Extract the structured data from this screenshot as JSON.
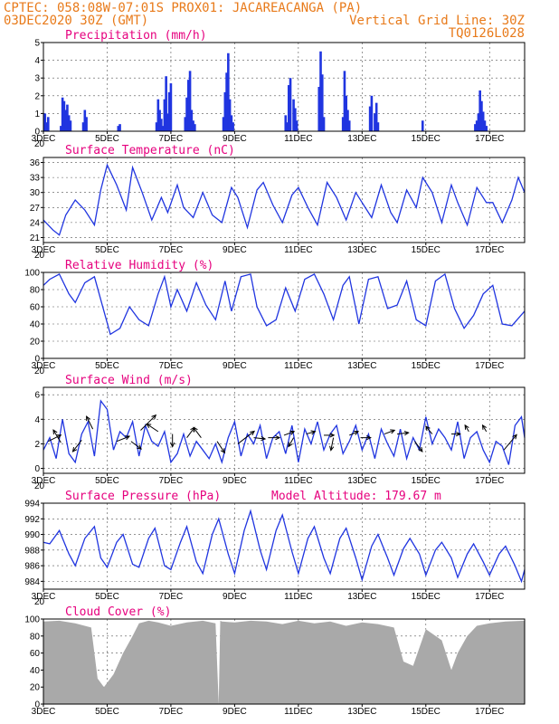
{
  "header": {
    "left_line1": "CPTEC:   058:08W-07:01S   PROX01: JACAREACANGA (PA)",
    "left_line2": "03DEC2020 30Z (GMT)",
    "right_line2": "Vertical Grid Line: 30Z",
    "right_line3": "TQ0126L028"
  },
  "colors": {
    "title": "#e6007e",
    "header": "#e87a1a",
    "series": "#2035e0",
    "cloud": "#a9a9a9",
    "arrow": "#000000"
  },
  "x_axis": {
    "day_labels": [
      "3DEC",
      "5DEC",
      "7DEC",
      "9DEC",
      "11DEC",
      "13DEC",
      "15DEC",
      "17DEC"
    ],
    "day_values": [
      3,
      5,
      7,
      9,
      11,
      13,
      15,
      17
    ],
    "xlim": [
      3,
      18.1
    ],
    "cut_label": "20"
  },
  "chart_data": [
    {
      "id": "precip",
      "type": "bar",
      "title": "Precipitation  (mm/h)",
      "ylim": [
        0,
        5
      ],
      "yticks": [
        0,
        1,
        2,
        3,
        4,
        5
      ],
      "x": [
        3.05,
        3.1,
        3.15,
        3.55,
        3.6,
        3.65,
        3.7,
        3.75,
        3.8,
        3.85,
        4.25,
        4.3,
        4.35,
        5.35,
        5.4,
        6.55,
        6.6,
        6.65,
        6.7,
        6.75,
        6.8,
        6.85,
        6.9,
        6.95,
        7.0,
        7.45,
        7.5,
        7.55,
        7.6,
        7.65,
        7.7,
        7.75,
        8.65,
        8.7,
        8.75,
        8.8,
        8.85,
        8.9,
        8.95,
        10.6,
        10.65,
        10.7,
        10.75,
        10.85,
        10.9,
        10.95,
        11.65,
        11.7,
        11.75,
        11.8,
        12.4,
        12.45,
        12.5,
        12.55,
        12.6,
        13.25,
        13.3,
        13.4,
        13.45,
        13.5,
        14.9,
        16.55,
        16.6,
        16.65,
        16.7,
        16.75,
        16.8,
        16.85,
        16.9
      ],
      "values": [
        1.0,
        0.5,
        0.8,
        0.3,
        1.9,
        1.7,
        1.2,
        1.5,
        0.9,
        0.6,
        0.5,
        1.2,
        0.8,
        0.3,
        0.4,
        0.5,
        1.8,
        1.2,
        0.7,
        0.3,
        1.8,
        3.1,
        1.0,
        2.2,
        2.7,
        0.8,
        1.9,
        2.9,
        3.4,
        1.2,
        0.6,
        0.4,
        0.8,
        2.2,
        3.3,
        4.4,
        1.8,
        0.9,
        0.5,
        0.9,
        0.5,
        2.6,
        3.0,
        1.8,
        1.3,
        0.6,
        2.5,
        4.5,
        3.2,
        0.8,
        0.8,
        3.4,
        2.0,
        1.2,
        0.6,
        1.4,
        2.0,
        1.0,
        1.6,
        0.5,
        0.6,
        0.4,
        0.6,
        1.0,
        2.3,
        1.7,
        1.1,
        0.6,
        0.3
      ]
    },
    {
      "id": "temp",
      "type": "line",
      "title": "Surface Temperature (nC)",
      "ylim": [
        20,
        37
      ],
      "yticks": [
        21,
        24,
        27,
        30,
        33,
        36
      ],
      "x": [
        3.0,
        3.3,
        3.5,
        3.7,
        4.0,
        4.3,
        4.6,
        4.8,
        5.0,
        5.3,
        5.6,
        5.8,
        6.1,
        6.4,
        6.7,
        6.9,
        7.2,
        7.4,
        7.7,
        8.0,
        8.3,
        8.6,
        8.9,
        9.1,
        9.4,
        9.7,
        9.9,
        10.2,
        10.5,
        10.8,
        11.0,
        11.3,
        11.6,
        11.9,
        12.2,
        12.5,
        12.8,
        13.0,
        13.3,
        13.6,
        13.9,
        14.1,
        14.4,
        14.7,
        14.9,
        15.2,
        15.5,
        15.8,
        16.0,
        16.3,
        16.6,
        16.9,
        17.1,
        17.4,
        17.7,
        17.9,
        18.1
      ],
      "values": [
        24.5,
        22.5,
        21.5,
        25.5,
        28.5,
        26.5,
        23.5,
        30.5,
        35.5,
        31.5,
        26.5,
        35.0,
        30.0,
        24.5,
        29.0,
        26.0,
        31.5,
        27.0,
        25.0,
        30.0,
        25.5,
        24.0,
        31.0,
        29.0,
        23.0,
        30.5,
        32.0,
        27.5,
        24.0,
        29.5,
        31.0,
        27.0,
        23.5,
        32.0,
        29.0,
        24.5,
        30.0,
        28.0,
        25.0,
        31.5,
        26.0,
        24.0,
        30.5,
        27.0,
        33.0,
        30.0,
        24.0,
        31.5,
        28.0,
        23.5,
        31.0,
        28.0,
        28.0,
        24.0,
        28.5,
        33.0,
        30.0
      ]
    },
    {
      "id": "rh",
      "type": "line",
      "title": "Relative Humidity (%)",
      "ylim": [
        0,
        100
      ],
      "yticks": [
        0,
        20,
        40,
        60,
        80,
        100
      ],
      "x": [
        3.0,
        3.2,
        3.5,
        3.8,
        4.0,
        4.3,
        4.6,
        4.9,
        5.1,
        5.4,
        5.7,
        6.0,
        6.3,
        6.6,
        6.8,
        7.0,
        7.2,
        7.5,
        7.8,
        8.1,
        8.4,
        8.7,
        8.9,
        9.2,
        9.5,
        9.7,
        10.0,
        10.3,
        10.6,
        10.9,
        11.2,
        11.5,
        11.8,
        12.1,
        12.4,
        12.6,
        12.9,
        13.2,
        13.5,
        13.8,
        14.1,
        14.4,
        14.7,
        15.0,
        15.3,
        15.6,
        15.9,
        16.2,
        16.5,
        16.8,
        17.1,
        17.4,
        17.7,
        18.1
      ],
      "values": [
        85,
        92,
        98,
        75,
        65,
        88,
        95,
        55,
        28,
        35,
        60,
        45,
        38,
        75,
        95,
        60,
        80,
        55,
        88,
        62,
        45,
        90,
        55,
        95,
        98,
        60,
        38,
        45,
        82,
        55,
        92,
        98,
        75,
        45,
        85,
        95,
        40,
        92,
        95,
        58,
        62,
        90,
        45,
        38,
        90,
        98,
        58,
        35,
        50,
        75,
        85,
        40,
        38,
        55
      ]
    },
    {
      "id": "wind",
      "type": "line",
      "title": "Surface Wind (m/s)",
      "ylim": [
        -0.4,
        6.6
      ],
      "yticks": [
        0,
        2,
        4,
        6
      ],
      "x": [
        3.0,
        3.2,
        3.4,
        3.6,
        3.8,
        4.0,
        4.2,
        4.4,
        4.6,
        4.8,
        5.0,
        5.2,
        5.4,
        5.6,
        5.8,
        6.0,
        6.2,
        6.4,
        6.6,
        6.8,
        7.0,
        7.2,
        7.4,
        7.6,
        7.8,
        8.0,
        8.2,
        8.4,
        8.6,
        8.8,
        9.0,
        9.2,
        9.4,
        9.6,
        9.8,
        10.0,
        10.2,
        10.4,
        10.6,
        10.8,
        11.0,
        11.2,
        11.4,
        11.6,
        11.8,
        12.0,
        12.2,
        12.4,
        12.6,
        12.8,
        13.0,
        13.2,
        13.4,
        13.6,
        13.8,
        14.0,
        14.2,
        14.4,
        14.6,
        14.8,
        15.0,
        15.2,
        15.4,
        15.6,
        15.8,
        16.0,
        16.2,
        16.4,
        16.6,
        16.8,
        17.0,
        17.2,
        17.4,
        17.6,
        17.8,
        18.0,
        18.1
      ],
      "values": [
        1.5,
        2.5,
        0.8,
        4.0,
        1.2,
        0.5,
        2.8,
        3.8,
        1.0,
        5.5,
        4.8,
        1.5,
        3.0,
        2.5,
        3.8,
        1.0,
        3.5,
        2.2,
        1.8,
        3.0,
        0.5,
        1.2,
        2.8,
        1.0,
        2.2,
        1.5,
        0.8,
        2.0,
        0.5,
        2.5,
        3.8,
        1.0,
        2.8,
        2.0,
        3.5,
        0.8,
        2.5,
        3.0,
        1.2,
        3.5,
        0.5,
        3.2,
        2.0,
        3.8,
        1.5,
        2.8,
        3.5,
        1.2,
        2.2,
        3.5,
        1.5,
        2.8,
        0.8,
        3.2,
        2.0,
        1.0,
        3.2,
        0.8,
        2.5,
        1.5,
        4.2,
        2.0,
        3.2,
        2.5,
        1.5,
        3.8,
        0.8,
        2.5,
        3.0,
        1.5,
        0.5,
        2.2,
        1.8,
        0.3,
        3.5,
        4.2,
        2.5
      ],
      "arrows": [
        {
          "x": 3.15,
          "y": 2.2,
          "u": 1.0,
          "v": 0.5
        },
        {
          "x": 3.55,
          "y": 2.1,
          "u": -0.6,
          "v": 1.0
        },
        {
          "x": 4.2,
          "y": 2.3,
          "u": -0.7,
          "v": -0.9
        },
        {
          "x": 4.55,
          "y": 3.2,
          "u": -0.5,
          "v": 1.0
        },
        {
          "x": 5.3,
          "y": 2.2,
          "u": 1.0,
          "v": 0.4
        },
        {
          "x": 5.75,
          "y": 2.2,
          "u": 0.8,
          "v": -0.6
        },
        {
          "x": 6.05,
          "y": 3.1,
          "u": 1.2,
          "v": 1.2
        },
        {
          "x": 6.6,
          "y": 3.0,
          "u": -0.9,
          "v": 0.6
        },
        {
          "x": 7.05,
          "y": 2.8,
          "u": 0.0,
          "v": -1.0
        },
        {
          "x": 7.5,
          "y": 2.5,
          "u": 0.6,
          "v": 0.8
        },
        {
          "x": 7.95,
          "y": 2.5,
          "u": -0.6,
          "v": 0.8
        },
        {
          "x": 8.45,
          "y": 2.2,
          "u": 0.6,
          "v": -0.9
        },
        {
          "x": 9.1,
          "y": 2.0,
          "u": 1.3,
          "v": 1.0
        },
        {
          "x": 9.6,
          "y": 2.5,
          "u": 0.9,
          "v": -0.1
        },
        {
          "x": 10.05,
          "y": 2.5,
          "u": 0.9,
          "v": 0.0
        },
        {
          "x": 10.55,
          "y": 2.7,
          "u": 0.8,
          "v": 0.3
        },
        {
          "x": 10.85,
          "y": 2.5,
          "u": -0.4,
          "v": -0.7
        },
        {
          "x": 11.25,
          "y": 2.8,
          "u": 0.7,
          "v": 0.2
        },
        {
          "x": 11.8,
          "y": 2.7,
          "u": 0.8,
          "v": 0.0
        },
        {
          "x": 12.1,
          "y": 2.5,
          "u": -0.2,
          "v": -1.0
        },
        {
          "x": 12.6,
          "y": 2.7,
          "u": 0.7,
          "v": 0.3
        },
        {
          "x": 12.95,
          "y": 2.5,
          "u": 0.8,
          "v": 0.0
        },
        {
          "x": 13.7,
          "y": 2.8,
          "u": 0.8,
          "v": 0.3
        },
        {
          "x": 14.1,
          "y": 2.8,
          "u": 0.9,
          "v": 0.1
        },
        {
          "x": 14.65,
          "y": 2.2,
          "u": 0.6,
          "v": -0.8
        },
        {
          "x": 15.2,
          "y": 2.8,
          "u": -0.5,
          "v": 0.6
        },
        {
          "x": 15.8,
          "y": 2.8,
          "u": 0.7,
          "v": 0.0
        },
        {
          "x": 16.35,
          "y": 3.0,
          "u": -0.3,
          "v": 0.5
        },
        {
          "x": 16.9,
          "y": 3.0,
          "u": -0.3,
          "v": 0.5
        },
        {
          "x": 17.45,
          "y": 1.5,
          "u": 1.0,
          "v": 1.2
        }
      ]
    },
    {
      "id": "press",
      "type": "line",
      "title": "Surface Pressure (hPa)",
      "annotation": "Model Altitude: 179.67 m",
      "ylim": [
        983,
        994
      ],
      "yticks": [
        984,
        986,
        988,
        990,
        992,
        994
      ],
      "x": [
        3.0,
        3.2,
        3.5,
        3.8,
        4.0,
        4.3,
        4.6,
        4.8,
        5.0,
        5.3,
        5.5,
        5.8,
        6.0,
        6.3,
        6.5,
        6.8,
        7.0,
        7.3,
        7.5,
        7.8,
        8.0,
        8.3,
        8.5,
        8.8,
        9.0,
        9.3,
        9.5,
        9.8,
        10.0,
        10.3,
        10.5,
        10.8,
        11.0,
        11.3,
        11.5,
        11.8,
        12.0,
        12.3,
        12.5,
        12.8,
        13.0,
        13.3,
        13.5,
        13.8,
        14.0,
        14.3,
        14.5,
        14.8,
        15.0,
        15.3,
        15.5,
        15.8,
        16.0,
        16.3,
        16.5,
        16.8,
        17.0,
        17.3,
        17.5,
        17.8,
        18.0,
        18.1
      ],
      "values": [
        989.0,
        988.8,
        990.5,
        987.5,
        986.0,
        989.5,
        991.0,
        987.0,
        985.8,
        989.0,
        990.0,
        986.2,
        985.8,
        989.5,
        990.8,
        986.0,
        985.5,
        989.0,
        991.0,
        986.5,
        985.0,
        990.0,
        992.0,
        987.5,
        985.0,
        990.5,
        993.0,
        988.0,
        985.5,
        990.5,
        992.5,
        987.8,
        985.0,
        989.5,
        991.0,
        987.0,
        985.0,
        989.5,
        990.8,
        987.0,
        984.2,
        988.5,
        990.0,
        987.0,
        984.8,
        988.2,
        989.5,
        987.5,
        984.8,
        988.0,
        989.0,
        987.0,
        984.5,
        987.5,
        988.8,
        986.5,
        984.8,
        987.5,
        988.5,
        986.0,
        984.0,
        985.5
      ]
    },
    {
      "id": "cloud",
      "type": "area",
      "title": "Cloud Cover (%)",
      "ylim": [
        0,
        100
      ],
      "yticks": [
        0,
        20,
        40,
        60,
        80,
        100
      ],
      "x": [
        3.0,
        3.5,
        4.0,
        4.5,
        4.7,
        4.9,
        5.2,
        5.5,
        5.8,
        6.0,
        6.3,
        6.6,
        7.0,
        7.5,
        8.0,
        8.4,
        8.5,
        8.55,
        8.6,
        9.0,
        9.5,
        10.0,
        10.5,
        11.0,
        11.5,
        12.0,
        12.5,
        13.0,
        13.5,
        14.0,
        14.3,
        14.6,
        15.0,
        15.5,
        15.8,
        16.0,
        16.3,
        16.6,
        17.0,
        17.5,
        18.1
      ],
      "values": [
        97,
        98,
        95,
        90,
        30,
        20,
        35,
        60,
        80,
        95,
        98,
        96,
        92,
        96,
        98,
        95,
        0,
        98,
        97,
        96,
        98,
        97,
        94,
        98,
        95,
        97,
        92,
        96,
        94,
        90,
        50,
        45,
        88,
        75,
        40,
        60,
        80,
        92,
        95,
        97,
        98
      ]
    }
  ]
}
